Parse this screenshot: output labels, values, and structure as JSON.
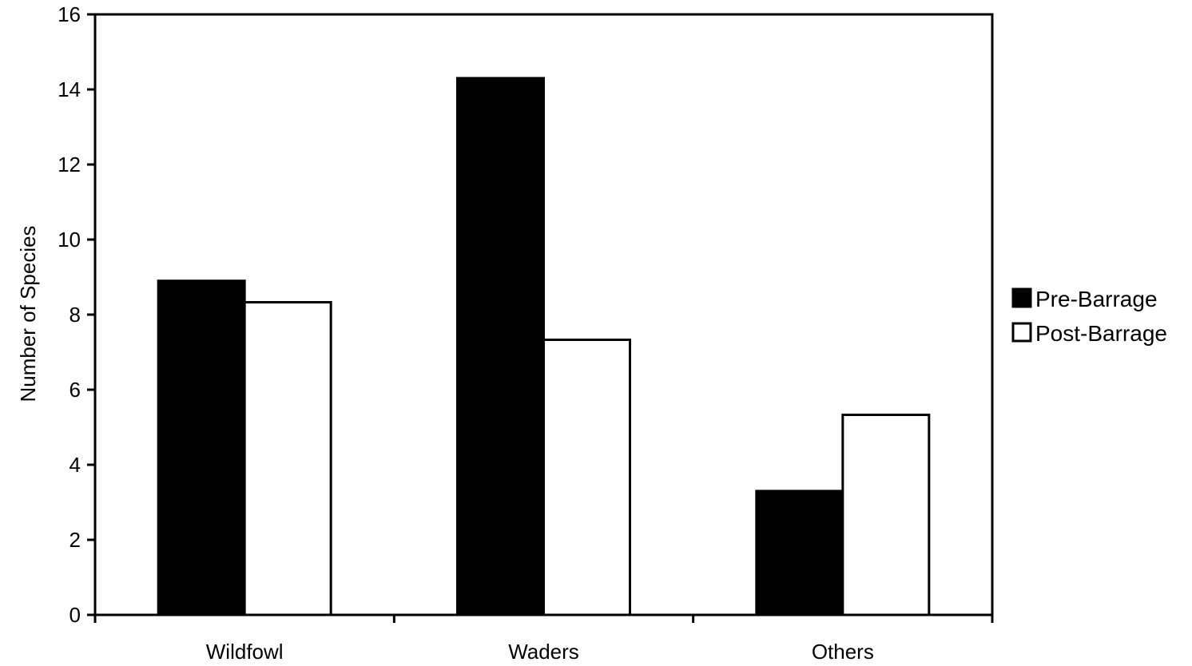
{
  "chart_data": {
    "type": "bar",
    "title": "",
    "xlabel": "",
    "ylabel": "Number of Species",
    "categories": [
      "Wildfowl",
      "Waders",
      "Others"
    ],
    "series": [
      {
        "name": "Pre-Barrage",
        "values": [
          8.9,
          14.3,
          3.3
        ],
        "fill": "#000000"
      },
      {
        "name": "Post-Barrage",
        "values": [
          8.33,
          7.33,
          5.33
        ],
        "fill": "#ffffff"
      }
    ],
    "ylim": [
      0,
      16
    ],
    "yticks": [
      0,
      2,
      4,
      6,
      8,
      10,
      12,
      14,
      16
    ],
    "grid": false,
    "legend_position": "right"
  }
}
